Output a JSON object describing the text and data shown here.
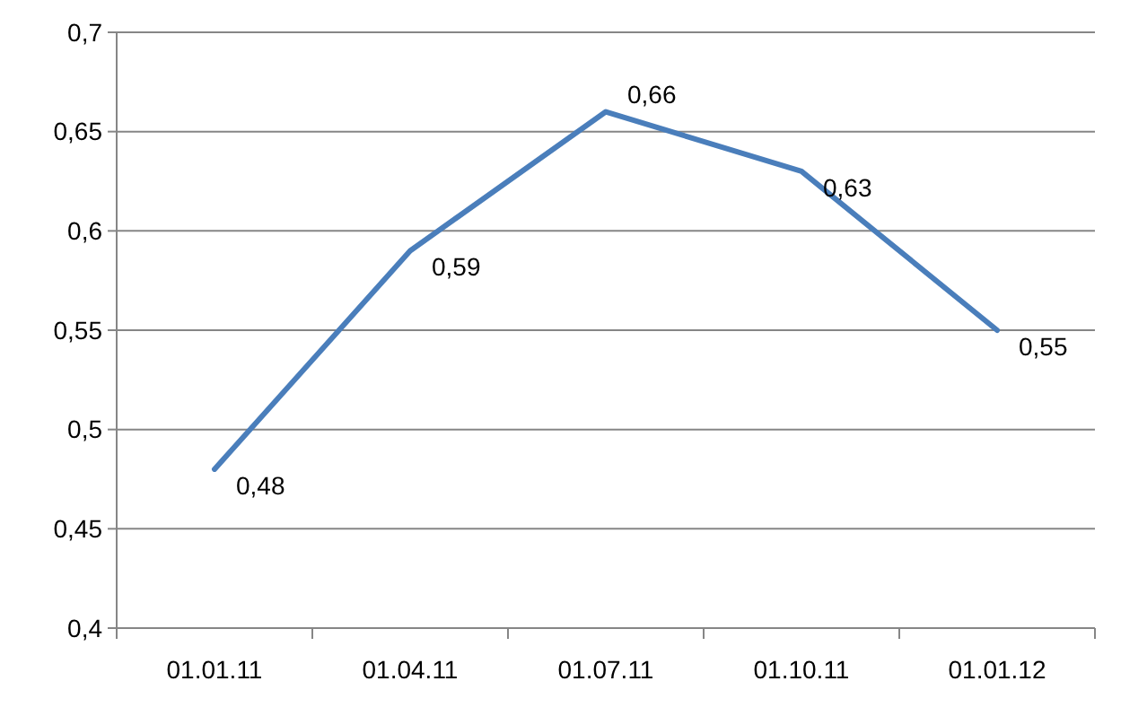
{
  "chart_data": {
    "type": "line",
    "categories": [
      "01.01.11",
      "01.04.11",
      "01.07.11",
      "01.10.11",
      "01.01.12"
    ],
    "series": [
      {
        "color": "#4a7ebb",
        "values": [
          0.48,
          0.59,
          0.66,
          0.63,
          0.55
        ],
        "value_labels": [
          "0,48",
          "0,59",
          "0,66",
          "0,63",
          "0,55"
        ]
      }
    ],
    "ylim": [
      0.4,
      0.7
    ],
    "yticks": [
      {
        "value": 0.4,
        "label": "0,4"
      },
      {
        "value": 0.45,
        "label": "0,45"
      },
      {
        "value": 0.5,
        "label": "0,5"
      },
      {
        "value": 0.55,
        "label": "0,55"
      },
      {
        "value": 0.6,
        "label": "0,6"
      },
      {
        "value": 0.65,
        "label": "0,65"
      },
      {
        "value": 0.7,
        "label": "0,7"
      }
    ],
    "grid": "y",
    "marker": "none",
    "line_style": "solid"
  }
}
